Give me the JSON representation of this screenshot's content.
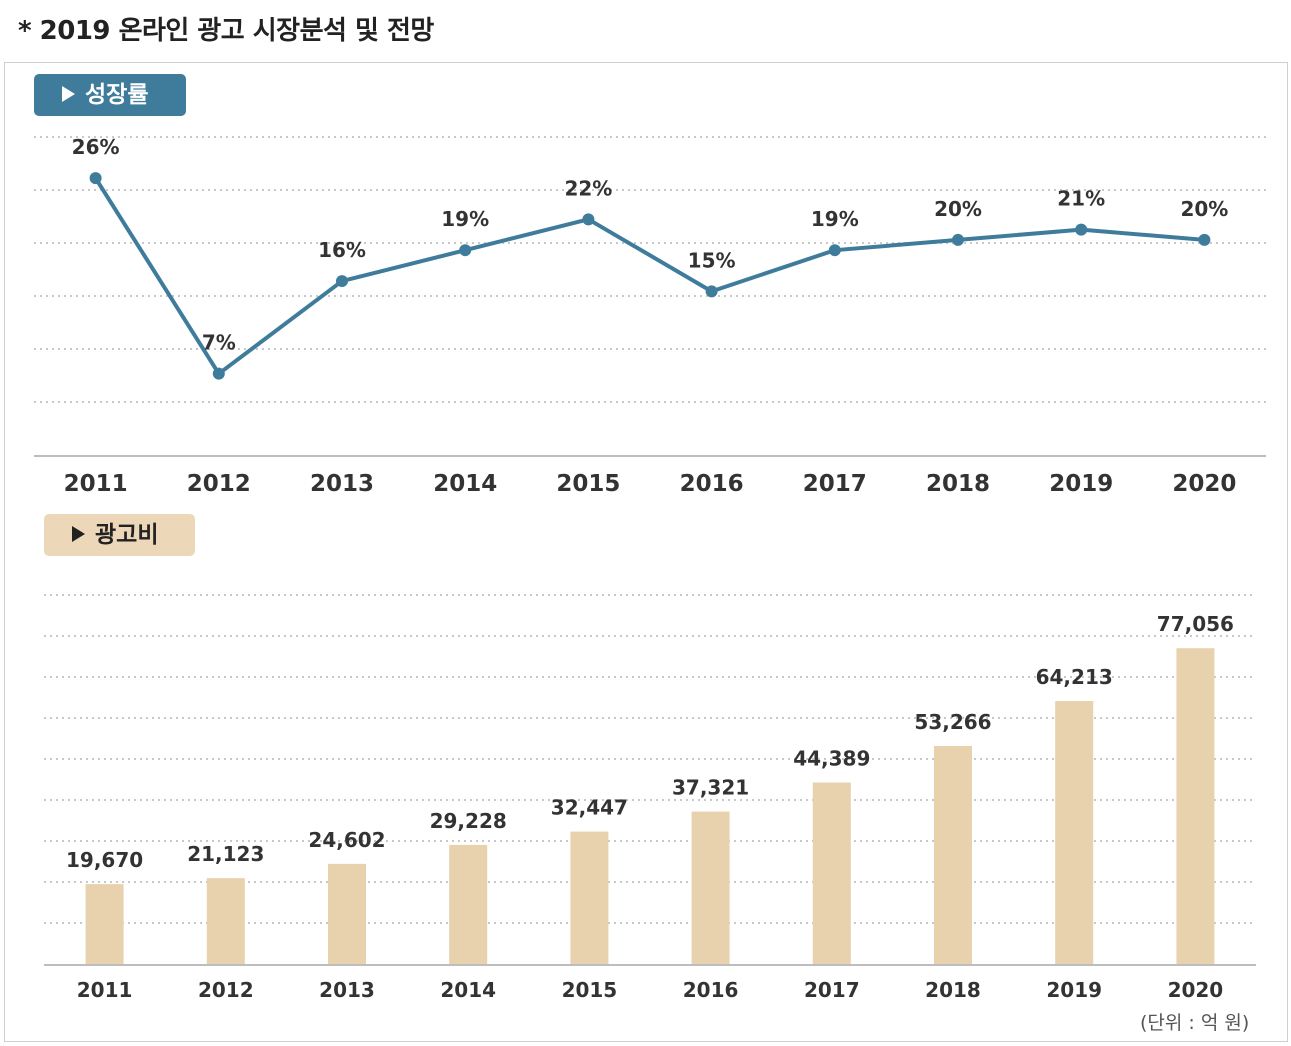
{
  "page_title": "* 2019 온라인 광고 시장분석 및 전망",
  "unit_note": "(단위 : 억 원)",
  "colors": {
    "line": "#3f7c9c",
    "bar": "#e8d1ad",
    "grid": "#c8c8c8",
    "axis": "#bdbdbd"
  },
  "chart_data": [
    {
      "type": "line",
      "title": "성장률",
      "xlabel": "",
      "ylabel": "",
      "grid": true,
      "categories": [
        "2011",
        "2012",
        "2013",
        "2014",
        "2015",
        "2016",
        "2017",
        "2018",
        "2019",
        "2020"
      ],
      "values": [
        26,
        7,
        16,
        19,
        22,
        15,
        19,
        20,
        21,
        20
      ],
      "labels": [
        "26%",
        "7%",
        "16%",
        "19%",
        "22%",
        "15%",
        "19%",
        "20%",
        "21%",
        "20%"
      ],
      "ylim": [
        -1,
        30
      ]
    },
    {
      "type": "bar",
      "title": "광고비",
      "xlabel": "",
      "ylabel": "",
      "grid": true,
      "categories": [
        "2011",
        "2012",
        "2013",
        "2014",
        "2015",
        "2016",
        "2017",
        "2018",
        "2019",
        "2020"
      ],
      "values": [
        19670,
        21123,
        24602,
        29228,
        32447,
        37321,
        44389,
        53266,
        64213,
        77056
      ],
      "labels": [
        "19,670",
        "21,123",
        "24,602",
        "29,228",
        "32,447",
        "37,321",
        "44,389",
        "53,266",
        "64,213",
        "77,056"
      ],
      "ylim": [
        0,
        90000
      ]
    }
  ]
}
